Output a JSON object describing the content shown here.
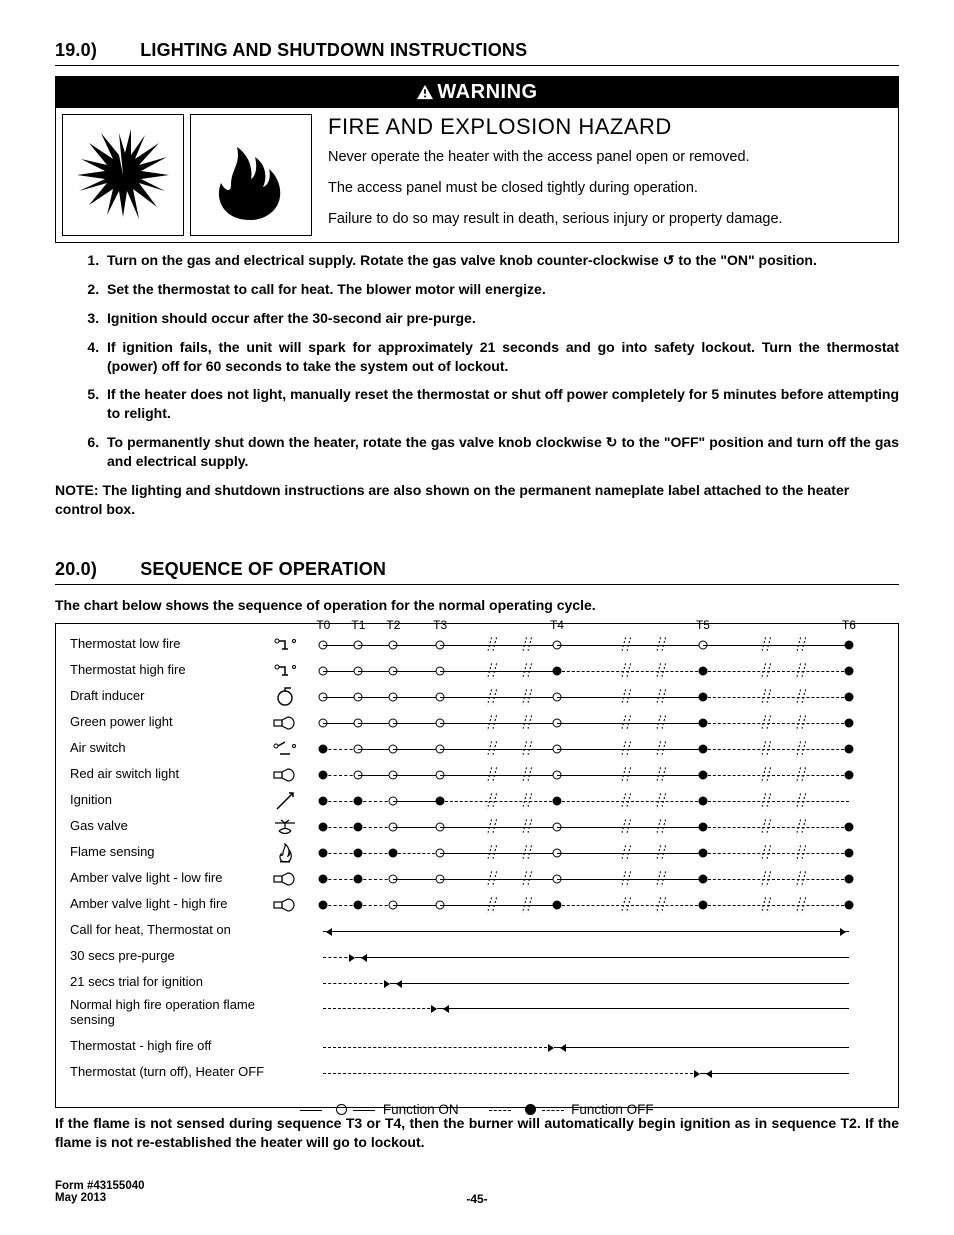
{
  "section19": {
    "number": "19.0)",
    "title": "LIGHTING AND SHUTDOWN INSTRUCTIONS"
  },
  "warning": {
    "banner": "WARNING",
    "hazard_title": "FIRE AND EXPLOSION HAZARD",
    "p1": "Never operate the heater with the access panel open or removed.",
    "p2": "The access panel must be closed tightly during operation.",
    "p3": "Failure to do so may result in death, serious injury or property damage."
  },
  "steps": [
    "Turn on the gas and electrical supply. Rotate the gas valve knob counter-clockwise ↺ to the \"ON\" position.",
    "Set the thermostat to call for heat. The blower motor will energize.",
    "Ignition should occur after the 30-second air pre-purge.",
    "If ignition fails, the unit will spark for approximately 21 seconds and go into safety lockout. Turn the thermostat (power) off for 60 seconds to take the system out of lockout.",
    "If the heater does not light, manually reset the thermostat or shut off power completely for 5 minutes before attempting to relight.",
    "To permanently shut down the heater, rotate the gas valve knob clockwise ↻ to the \"OFF\" position and turn off the gas and electrical supply."
  ],
  "note": "NOTE: The lighting and shutdown instructions are also shown on the permanent nameplate label attached to the heater control box.",
  "section20": {
    "number": "20.0)",
    "title": "SEQUENCE OF OPERATION"
  },
  "seq_intro": "The chart below shows the sequence of operation for the normal operating cycle.",
  "chart": {
    "time_labels": [
      "T0",
      "T1",
      "T2",
      "T3",
      "T4",
      "T5",
      "T6"
    ],
    "time_positions_pct": [
      4,
      10,
      16,
      24,
      44,
      69,
      94
    ],
    "break_positions_pct": [
      33,
      39,
      56,
      62,
      80,
      86
    ],
    "signal_rows": [
      {
        "label": "Thermostat low fire",
        "icon": "thermostat",
        "states": [
          1,
          1,
          1,
          1,
          1,
          1,
          0
        ]
      },
      {
        "label": "Thermostat high fire",
        "icon": "thermostat",
        "states": [
          1,
          1,
          1,
          1,
          0,
          0,
          0
        ]
      },
      {
        "label": "Draft inducer",
        "icon": "fan",
        "states": [
          1,
          1,
          1,
          1,
          1,
          0,
          0
        ]
      },
      {
        "label": "Green power light",
        "icon": "light",
        "states": [
          1,
          1,
          1,
          1,
          1,
          0,
          0
        ]
      },
      {
        "label": "Air switch",
        "icon": "switch",
        "states": [
          0,
          1,
          1,
          1,
          1,
          0,
          0
        ]
      },
      {
        "label": "Red air switch light",
        "icon": "light",
        "states": [
          0,
          1,
          1,
          1,
          1,
          0,
          0
        ]
      },
      {
        "label": "Ignition",
        "icon": "spark",
        "states": [
          0,
          0,
          1,
          0,
          0,
          0,
          0
        ]
      },
      {
        "label": "Gas valve",
        "icon": "valve",
        "states": [
          0,
          0,
          1,
          1,
          1,
          0,
          0
        ]
      },
      {
        "label": "Flame sensing",
        "icon": "flame",
        "states": [
          0,
          0,
          0,
          1,
          1,
          0,
          0
        ]
      },
      {
        "label": "Amber valve light - low fire",
        "icon": "light",
        "states": [
          0,
          0,
          1,
          1,
          1,
          0,
          0
        ]
      },
      {
        "label": "Amber valve light - high fire",
        "icon": "light",
        "states": [
          0,
          0,
          1,
          1,
          0,
          0,
          0
        ]
      }
    ],
    "phase_rows": [
      {
        "label": "Call for heat, Thermostat on",
        "from_t": 0,
        "to_t": 6,
        "start_style": "both"
      },
      {
        "label": "30 secs pre-purge",
        "from_t": 0,
        "to_t": 1,
        "start_style": "dash-then-arrows"
      },
      {
        "label": "21 secs trial for ignition",
        "from_t": 0,
        "to_t": 2,
        "start_style": "dash-then-arrows"
      },
      {
        "label": "Normal high fire operation flame sensing",
        "from_t": 0,
        "to_t": 3,
        "big": true,
        "start_style": "dash-then-arrows"
      },
      {
        "label": "Thermostat - high fire off",
        "from_t": 0,
        "to_t": 4,
        "start_style": "dash-then-arrows"
      },
      {
        "label": "Thermostat (turn off), Heater OFF",
        "from_t": 0,
        "to_t": 5,
        "start_style": "dash-then-arrows"
      }
    ],
    "legend_on": "Function  ON",
    "legend_off": "Function  OFF"
  },
  "seq_footnote": "If the flame is not sensed during sequence T3 or T4, then the burner will automatically begin ignition as in sequence T2. If the flame is not re-established the heater will go to lockout.",
  "footer": {
    "form": "Form #43155040",
    "date": "May 2013",
    "page": "-45-"
  },
  "colors": {
    "text": "#000000",
    "background": "#ffffff"
  }
}
